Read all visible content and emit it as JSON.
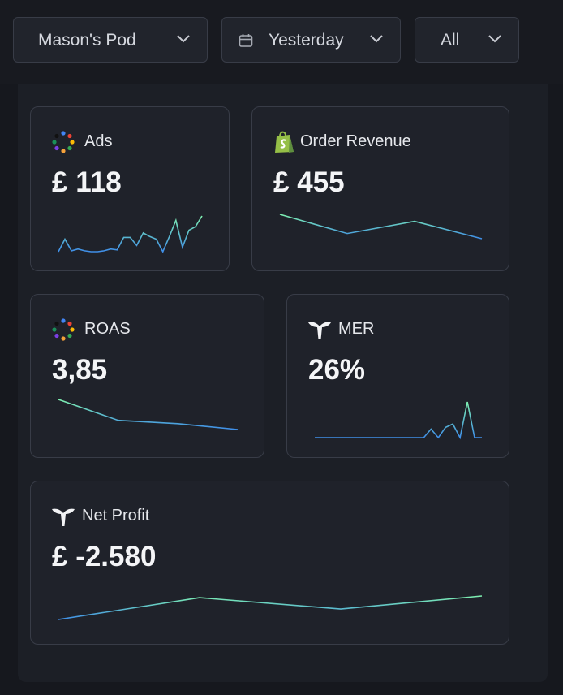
{
  "filters": [
    {
      "label": "Mason's Pod"
    },
    {
      "label": "Yesterday"
    },
    {
      "label": "All"
    }
  ],
  "cards": [
    {
      "title": "Ads",
      "value": "£ 118",
      "sparkline": [
        3,
        17,
        4,
        6,
        4,
        3,
        3,
        4,
        6,
        5,
        19,
        19,
        10,
        24,
        20,
        17,
        3,
        20,
        38,
        8,
        27,
        31,
        43
      ]
    },
    {
      "title": "Order Revenue",
      "value": "£ 455",
      "sparkline": [
        47,
        25,
        39,
        19
      ]
    },
    {
      "title": "ROAS",
      "value": "3,85",
      "sparkline": [
        36,
        11,
        7,
        0
      ]
    },
    {
      "title": "MER",
      "value": "26%",
      "sparkline": [
        0,
        0,
        0,
        0,
        0,
        0,
        0,
        0,
        0,
        0,
        0,
        0,
        0,
        0,
        0,
        0,
        10,
        0,
        12,
        16,
        0,
        42,
        0,
        0
      ]
    },
    {
      "title": "Net Profit",
      "value": "£ -2.580",
      "sparkline": [
        0,
        25,
        12,
        27
      ]
    }
  ]
}
